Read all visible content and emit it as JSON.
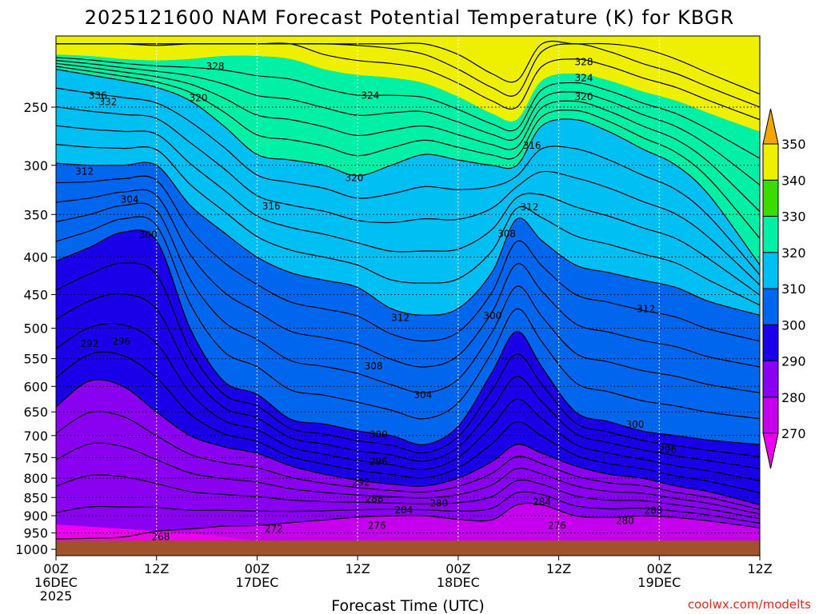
{
  "chart_data": {
    "type": "heatmap",
    "subtype": "time-height filled contour",
    "title": "2025121600 NAM Forecast Potential Temperature (K) for KBGR",
    "xlabel": "Forecast Time (UTC)",
    "ylabel": "",
    "credit": "coolwx.com/modelts",
    "x_ticks": [
      {
        "hour": 0,
        "line1": "00Z",
        "line2": "16DEC",
        "line3": "2025"
      },
      {
        "hour": 12,
        "line1": "12Z",
        "line2": "",
        "line3": ""
      },
      {
        "hour": 24,
        "line1": "00Z",
        "line2": "17DEC",
        "line3": ""
      },
      {
        "hour": 36,
        "line1": "12Z",
        "line2": "",
        "line3": ""
      },
      {
        "hour": 48,
        "line1": "00Z",
        "line2": "18DEC",
        "line3": ""
      },
      {
        "hour": 60,
        "line1": "12Z",
        "line2": "",
        "line3": ""
      },
      {
        "hour": 72,
        "line1": "00Z",
        "line2": "19DEC",
        "line3": ""
      },
      {
        "hour": 84,
        "line1": "12Z",
        "line2": "",
        "line3": ""
      }
    ],
    "xlim_hours": [
      0,
      84
    ],
    "y_ticks_hPa": [
      "250",
      "300",
      "350",
      "400",
      "450",
      "500",
      "550",
      "600",
      "650",
      "700",
      "750",
      "800",
      "850",
      "900",
      "950",
      "1000"
    ],
    "ylim_hPa": [
      1020,
      200
    ],
    "colorbar": {
      "levels": [
        270,
        280,
        290,
        300,
        310,
        320,
        330,
        340,
        350
      ],
      "labels": [
        "270",
        "280",
        "290",
        "300",
        "310",
        "320",
        "330",
        "340",
        "350"
      ],
      "colors": [
        "#ee00ee",
        "#c400ee",
        "#8a00f0",
        "#1a00e8",
        "#0066ee",
        "#00bff2",
        "#00f0a6",
        "#3bdc00",
        "#eef000",
        "#f4a500"
      ]
    },
    "contour_interval_K": 4,
    "contour_labels": [
      {
        "value": "328",
        "hour": 19.0,
        "p": 220
      },
      {
        "value": "336",
        "hour": 5.0,
        "p": 241
      },
      {
        "value": "332",
        "hour": 6.2,
        "p": 246
      },
      {
        "value": "320",
        "hour": 17.0,
        "p": 243
      },
      {
        "value": "324",
        "hour": 37.5,
        "p": 241
      },
      {
        "value": "328",
        "hour": 63.0,
        "p": 217
      },
      {
        "value": "324",
        "hour": 63.0,
        "p": 228
      },
      {
        "value": "320",
        "hour": 63.0,
        "p": 242
      },
      {
        "value": "316",
        "hour": 56.8,
        "p": 282
      },
      {
        "value": "312",
        "hour": 3.4,
        "p": 306
      },
      {
        "value": "304",
        "hour": 8.8,
        "p": 334
      },
      {
        "value": "320",
        "hour": 35.6,
        "p": 312
      },
      {
        "value": "316",
        "hour": 25.7,
        "p": 341
      },
      {
        "value": "312",
        "hour": 56.5,
        "p": 342
      },
      {
        "value": "300",
        "hour": 11.0,
        "p": 373
      },
      {
        "value": "308",
        "hour": 53.8,
        "p": 372
      },
      {
        "value": "312",
        "hour": 41.1,
        "p": 484
      },
      {
        "value": "312",
        "hour": 70.4,
        "p": 471
      },
      {
        "value": "300",
        "hour": 52.1,
        "p": 481
      },
      {
        "value": "292",
        "hour": 4.0,
        "p": 525
      },
      {
        "value": "296",
        "hour": 7.8,
        "p": 521
      },
      {
        "value": "308",
        "hour": 37.9,
        "p": 563
      },
      {
        "value": "304",
        "hour": 43.8,
        "p": 616
      },
      {
        "value": "300",
        "hour": 69.1,
        "p": 676
      },
      {
        "value": "300",
        "hour": 38.5,
        "p": 698
      },
      {
        "value": "296",
        "hour": 73.0,
        "p": 732
      },
      {
        "value": "296",
        "hour": 38.5,
        "p": 760
      },
      {
        "value": "292",
        "hour": 36.4,
        "p": 811
      },
      {
        "value": "288",
        "hour": 38.0,
        "p": 854
      },
      {
        "value": "284",
        "hour": 41.5,
        "p": 884
      },
      {
        "value": "280",
        "hour": 45.7,
        "p": 866
      },
      {
        "value": "284",
        "hour": 58.0,
        "p": 862
      },
      {
        "value": "288",
        "hour": 71.3,
        "p": 885
      },
      {
        "value": "276",
        "hour": 38.3,
        "p": 929
      },
      {
        "value": "276",
        "hour": 59.8,
        "p": 929
      },
      {
        "value": "280",
        "hour": 67.9,
        "p": 915
      },
      {
        "value": "272",
        "hour": 26.0,
        "p": 938
      },
      {
        "value": "268",
        "hour": 12.5,
        "p": 962
      }
    ],
    "isentrope_profiles_hPa": {
      "hours": [
        0,
        4,
        8,
        12,
        16,
        20,
        24,
        28,
        32,
        36,
        40,
        44,
        48,
        52,
        55,
        58,
        62,
        66,
        70,
        74,
        78,
        84
      ],
      "theta_280": [
        968,
        966,
        962,
        945,
        938,
        930,
        928,
        920,
        912,
        904,
        900,
        900,
        910,
        912,
        870,
        870,
        900,
        905,
        900,
        905,
        915,
        935
      ],
      "theta_290": [
        640,
        590,
        600,
        650,
        700,
        725,
        740,
        770,
        790,
        805,
        815,
        820,
        800,
        760,
        720,
        740,
        770,
        790,
        800,
        820,
        835,
        870
      ],
      "theta_300": [
        405,
        388,
        370,
        380,
        500,
        590,
        615,
        665,
        675,
        690,
        700,
        720,
        680,
        575,
        505,
        565,
        650,
        670,
        690,
        700,
        710,
        720
      ],
      "theta_310": [
        298,
        300,
        300,
        300,
        340,
        370,
        400,
        420,
        430,
        440,
        470,
        480,
        470,
        420,
        355,
        380,
        410,
        420,
        430,
        440,
        460,
        480
      ],
      "theta_320": [
        222,
        226,
        230,
        235,
        245,
        265,
        290,
        295,
        300,
        310,
        300,
        290,
        295,
        300,
        300,
        265,
        260,
        270,
        285,
        300,
        330,
        410
      ],
      "theta_330": [
        212,
        213,
        215,
        216,
        215,
        213,
        213,
        215,
        222,
        226,
        228,
        232,
        242,
        255,
        260,
        230,
        225,
        230,
        238,
        245,
        255,
        270
      ]
    }
  }
}
